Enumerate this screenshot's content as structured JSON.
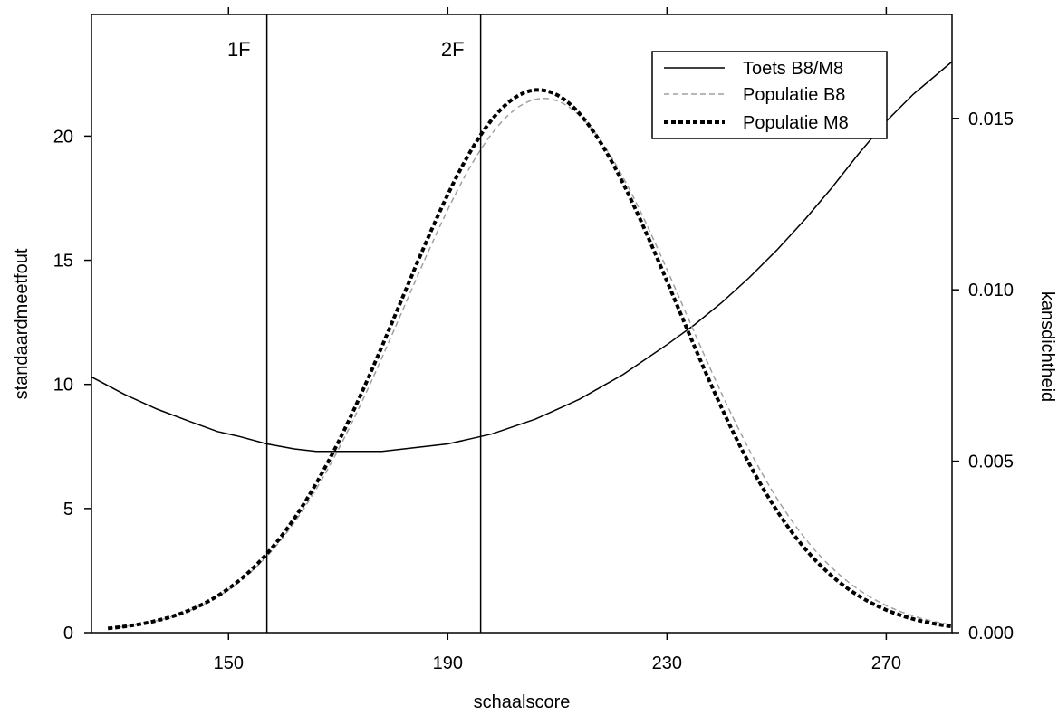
{
  "chart_data": {
    "type": "line",
    "xlabel": "schaalscore",
    "ylabel_left": "standaardmeetfout",
    "ylabel_right": "kansdichtheid",
    "xlim": [
      125,
      282
    ],
    "ylim_left": [
      0,
      24.9
    ],
    "ylim_right": [
      0,
      0.01803
    ],
    "x_ticks": [
      150,
      190,
      230,
      270
    ],
    "x_tick_labels": [
      "150",
      "190",
      "230",
      "270"
    ],
    "y_left_ticks": [
      0,
      5,
      10,
      15,
      20
    ],
    "y_left_tick_labels": [
      "0",
      "5",
      "10",
      "15",
      "20"
    ],
    "y_right_ticks": [
      0.0,
      0.005,
      0.01,
      0.015
    ],
    "y_right_tick_labels": [
      "0.000",
      "0.005",
      "0.010",
      "0.015"
    ],
    "grid": false,
    "legend_position": "top-right",
    "reference_lines": [
      {
        "label": "1F",
        "x": 157
      },
      {
        "label": "2F",
        "x": 196
      }
    ],
    "series": [
      {
        "name": "Toets B8/M8",
        "axis": "left",
        "style": "solid",
        "color": "#000000",
        "x": [
          125,
          131,
          137,
          143,
          148,
          152,
          157,
          162,
          166,
          170,
          174,
          178,
          182,
          186,
          190,
          194,
          198,
          202,
          206,
          210,
          214,
          218,
          222,
          226,
          230,
          235,
          240,
          245,
          250,
          255,
          260,
          265,
          270,
          275,
          282
        ],
        "y": [
          10.3,
          9.6,
          9.0,
          8.5,
          8.1,
          7.9,
          7.6,
          7.4,
          7.3,
          7.3,
          7.3,
          7.3,
          7.4,
          7.5,
          7.6,
          7.8,
          8.0,
          8.3,
          8.6,
          9.0,
          9.4,
          9.9,
          10.4,
          11.0,
          11.6,
          12.4,
          13.3,
          14.3,
          15.4,
          16.6,
          17.9,
          19.3,
          20.6,
          21.7,
          23.0
        ]
      },
      {
        "name": "Populatie B8",
        "axis": "right",
        "style": "dashed",
        "color": "#a0a0a0",
        "mean": 207.5,
        "sd": 25.6
      },
      {
        "name": "Populatie M8",
        "axis": "right",
        "style": "dotted",
        "color": "#000000",
        "mean": 206.5,
        "sd": 25.2
      }
    ]
  }
}
